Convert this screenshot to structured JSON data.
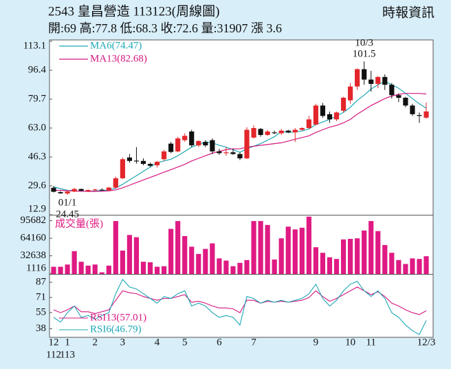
{
  "chart_data": [
    {
      "type": "candlestick",
      "title": "2543  皇昌營造 113123(周線圖)",
      "source": "時報資訊",
      "subtitle": "開:69 高:77.8 低:68.3 收:72.6 量:31907 漲 3.6",
      "up_color": "#e3262b",
      "down_color": "#111111",
      "open": [
        28.5,
        26,
        25.2,
        26.3,
        27.8,
        26.6,
        27.2,
        27.4,
        27,
        28.6,
        34,
        46,
        44.2,
        44,
        42.3,
        41.5,
        45,
        54,
        49.5,
        56,
        61,
        53,
        55,
        56,
        49.5,
        48.5,
        49,
        48,
        45.5,
        57.5,
        62.5,
        59,
        60.5,
        60,
        61.5,
        60.5,
        62,
        63,
        65,
        76,
        71,
        68,
        73,
        79,
        87,
        97,
        91,
        88.5,
        92.5,
        88,
        82,
        80.5,
        76,
        70.5,
        69
      ],
      "high": [
        29.5,
        26.5,
        27,
        28.5,
        28,
        27.5,
        28,
        28.2,
        29,
        35,
        46,
        48,
        52,
        45.5,
        43,
        44,
        50.5,
        55,
        58,
        60,
        62,
        56,
        56,
        57,
        51,
        52,
        51,
        49,
        63.5,
        64.5,
        63,
        62,
        61.5,
        62.5,
        62,
        63,
        63.5,
        70,
        77,
        77.5,
        72.5,
        72.5,
        81,
        89,
        97.5,
        101.5,
        96,
        93,
        94,
        89,
        83,
        81,
        77,
        72,
        77.8
      ],
      "low": [
        25.8,
        25,
        24.45,
        26,
        26.5,
        26,
        26.8,
        26.9,
        26.8,
        28,
        33.5,
        43,
        42.5,
        41.5,
        40.5,
        40.2,
        44,
        48.5,
        49,
        55,
        52,
        52,
        52,
        48,
        47.5,
        47,
        47.5,
        44.5,
        45,
        57,
        58,
        58.5,
        59.5,
        59,
        60,
        55,
        61.5,
        62.5,
        64.5,
        69,
        66,
        67,
        72,
        77,
        85,
        88,
        84,
        86,
        85,
        80,
        78,
        75,
        70,
        66,
        68.3
      ],
      "close": [
        26.2,
        25.3,
        26.3,
        27.8,
        26.8,
        27.2,
        27.5,
        27,
        28.6,
        34,
        45,
        44,
        44,
        42.3,
        41.2,
        43.5,
        49.5,
        49.2,
        57,
        58.5,
        53,
        55.5,
        53,
        49.5,
        48.5,
        49,
        48,
        45.5,
        62,
        63,
        59,
        61,
        60,
        61.5,
        60.5,
        62,
        63,
        68,
        76,
        70,
        68,
        72,
        80.5,
        87,
        97,
        91,
        88.5,
        92.5,
        88,
        82,
        80.5,
        76,
        71,
        70,
        72.6
      ],
      "series": [
        {
          "name": "MA6(74.47)",
          "color": "#1ba7b5",
          "values": [
            29,
            28,
            27,
            26.8,
            26.5,
            26.5,
            26.6,
            26.9,
            27.2,
            28.3,
            30.5,
            33,
            35.5,
            38,
            40.5,
            43,
            44,
            45,
            47,
            49.5,
            52,
            53.5,
            55,
            54.5,
            53,
            52,
            50.5,
            49,
            51,
            52.5,
            54,
            56,
            58,
            61,
            60.5,
            60.8,
            61.3,
            62.5,
            65,
            66.5,
            68,
            70,
            72,
            75,
            79,
            82,
            85.5,
            88,
            90,
            88,
            86,
            83,
            80,
            77,
            74.47
          ]
        },
        {
          "name": "MA13(82.68)",
          "color": "#d4167f",
          "values": [
            27,
            27,
            26.8,
            26.6,
            26.5,
            26.4,
            26.4,
            26.5,
            26.7,
            27.3,
            28.5,
            30,
            31.5,
            33,
            34.5,
            36,
            37.5,
            39,
            40.5,
            42,
            44,
            45.5,
            47,
            48.5,
            49.5,
            50.5,
            51,
            51,
            52,
            52.5,
            53,
            53.5,
            54,
            54.5,
            55.5,
            56.5,
            57.5,
            58.5,
            60.5,
            62,
            63.5,
            64.5,
            66,
            68,
            71,
            73.5,
            76,
            78,
            80,
            81.5,
            82.5,
            83,
            83,
            83,
            82.68
          ]
        }
      ],
      "annotations": [
        {
          "date": "10/3",
          "value": 101.5
        },
        {
          "date": "01/1",
          "value": 24.45
        }
      ],
      "ylim": [
        12.9,
        113.1
      ],
      "yticks": [
        113.1,
        96.4,
        79.7,
        {
          "value": 63,
          "label": "63.0"
        },
        46.3,
        29.6,
        12.9
      ]
    },
    {
      "type": "bar",
      "title": "成交量(張)",
      "color": "#df1a83",
      "values": [
        13000,
        13000,
        17000,
        41000,
        22000,
        15000,
        17000,
        3000,
        15000,
        95000,
        42000,
        70000,
        66000,
        22000,
        21000,
        13000,
        14000,
        81000,
        95000,
        68000,
        49000,
        36000,
        45000,
        55000,
        28000,
        24000,
        14000,
        20000,
        25000,
        95000,
        95000,
        88000,
        26000,
        64000,
        85000,
        80000,
        83000,
        103000,
        48000,
        38000,
        30000,
        27000,
        62000,
        63000,
        64000,
        78000,
        95000,
        77000,
        52000,
        38000,
        25000,
        18000,
        28000,
        27000,
        31907
      ],
      "ylim": [
        0,
        105000
      ],
      "yticks": [
        95682,
        64160,
        32638,
        1116
      ]
    },
    {
      "type": "line",
      "categories": [
        "12",
        null,
        "1",
        null,
        null,
        null,
        "2",
        null,
        null,
        null,
        "3",
        null,
        null,
        null,
        null,
        "4",
        null,
        null,
        null,
        "5",
        null,
        null,
        null,
        null,
        "6",
        null,
        null,
        null,
        null,
        "7",
        null,
        null,
        null,
        null,
        null,
        null,
        null,
        null,
        "9",
        null,
        null,
        null,
        null,
        "10",
        null,
        null,
        "11",
        null,
        null,
        null,
        null,
        null,
        null,
        null,
        "12/3"
      ],
      "years": [
        "112",
        null,
        "113",
        null,
        null,
        null,
        null,
        null,
        null,
        null,
        null,
        null,
        null,
        null,
        null,
        null,
        null,
        null,
        null,
        null,
        null,
        null,
        null,
        null,
        null,
        null,
        null,
        null,
        null,
        null,
        null,
        null,
        null,
        null,
        null,
        null,
        null,
        null,
        null,
        null,
        null,
        null,
        null,
        null,
        null,
        null,
        null,
        null,
        null,
        null,
        null,
        null,
        null,
        null,
        null
      ],
      "series": [
        {
          "name": "RSI13(57.01)",
          "color": "#d4167f",
          "values": [
            58,
            55,
            58,
            62,
            56,
            56,
            54,
            56,
            58,
            68,
            78,
            76,
            75,
            72,
            70,
            68,
            70,
            70,
            72,
            74,
            66,
            67,
            65,
            62,
            60,
            60,
            59,
            55,
            68,
            68,
            65,
            67,
            66,
            67,
            66,
            67,
            68,
            71,
            78,
            72,
            67,
            70,
            74,
            78,
            82,
            78,
            74,
            77,
            72,
            65,
            62,
            58,
            55,
            53,
            57.01
          ]
        },
        {
          "name": "RSI6(46.79)",
          "color": "#1ba7b5",
          "values": [
            50,
            45,
            55,
            62,
            50,
            52,
            48,
            52,
            55,
            75,
            90,
            82,
            80,
            75,
            70,
            65,
            72,
            70,
            75,
            78,
            62,
            65,
            62,
            55,
            50,
            52,
            50,
            42,
            72,
            70,
            65,
            68,
            66,
            68,
            66,
            68,
            70,
            75,
            85,
            70,
            62,
            68,
            78,
            85,
            88,
            78,
            72,
            78,
            70,
            55,
            50,
            42,
            36,
            32,
            46.79
          ]
        }
      ],
      "ylim": [
        29,
        95
      ],
      "yticks": [
        87,
        71,
        55,
        38
      ]
    }
  ]
}
